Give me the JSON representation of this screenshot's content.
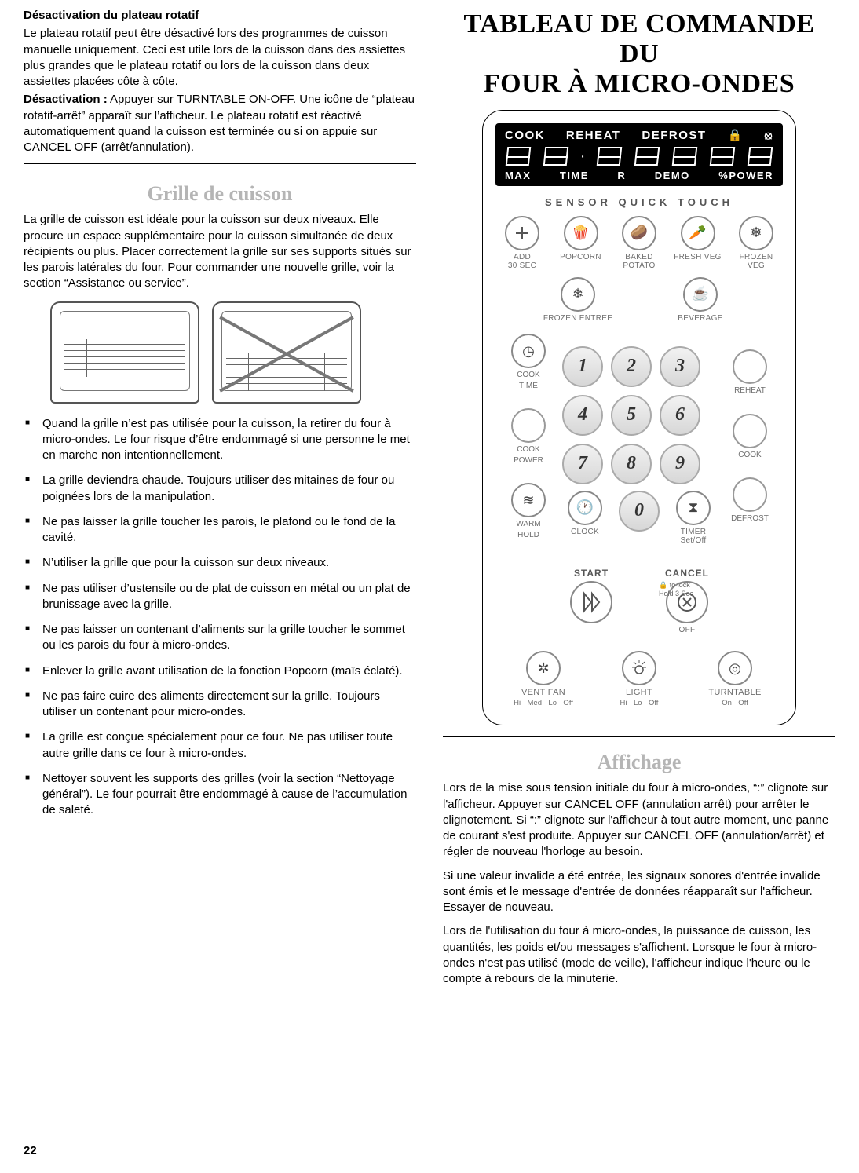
{
  "left": {
    "h1": "Désactivation du plateau rotatif",
    "p1": "Le plateau rotatif peut être désactivé lors des programmes de cuisson manuelle uniquement. Ceci est utile lors de la cuisson dans des assiettes plus grandes que le plateau rotatif ou lors de la cuisson dans deux assiettes placées côte à côte.",
    "h2": "Désactivation :",
    "p2": " Appuyer sur TURNTABLE ON-OFF. Une icône de “plateau rotatif-arrêt” apparaît sur l’afficheur. Le plateau rotatif est réactivé automatiquement quand la cuisson est terminée ou si on appuie sur CANCEL OFF (arrêt/annulation).",
    "sub1": "Grille de cuisson",
    "p3": "La grille de cuisson est idéale pour la cuisson sur deux niveaux. Elle procure un espace supplémentaire pour la cuisson simultanée de deux récipients ou plus. Placer correctement la grille sur ses supports situés sur les parois latérales du four. Pour commander une nouvelle grille, voir la section “Assistance ou service”.",
    "bullets": [
      "Quand la grille n’est pas utilisée pour la cuisson, la retirer du four à micro-ondes. Le four risque d’être endommagé si une personne le met en marche non intentionnellement.",
      "La grille deviendra chaude. Toujours utiliser des mitaines de four ou poignées lors de la manipulation.",
      "Ne pas laisser la grille toucher les parois, le plafond ou le fond de la cavité.",
      "N’utiliser la grille que pour la cuisson sur deux niveaux.",
      "Ne pas utiliser d’ustensile ou de plat de cuisson en métal ou un plat de brunissage avec la grille.",
      "Ne pas laisser un contenant d’aliments sur la grille toucher le sommet ou les parois du four à micro-ondes.",
      "Enlever la grille avant utilisation de la fonction Popcorn (maïs éclaté).",
      "Ne pas faire cuire des aliments directement sur la grille. Toujours utiliser un contenant pour micro-ondes.",
      "La grille est conçue spécialement pour ce four. Ne pas utiliser toute autre grille dans ce four à micro-ondes.",
      "Nettoyer souvent les supports des grilles (voir la section “Nettoyage général”). Le four pourrait être endommagé à cause de l’accumulation de saleté."
    ]
  },
  "right": {
    "title1": "TABLEAU DE COMMANDE DU",
    "title2": "FOUR À MICRO-ONDES",
    "panel": {
      "disp_top": [
        "COOK",
        "REHEAT",
        "DEFROST"
      ],
      "disp_bot": [
        "MAX",
        "TIME",
        "R",
        "DEMO",
        "%POWER"
      ],
      "subtitle": "SENSOR  QUICK  TOUCH",
      "quick": [
        {
          "label": "ADD\n30 SEC",
          "icon": "plus"
        },
        {
          "label": "POPCORN",
          "icon": "popcorn"
        },
        {
          "label": "BAKED\nPOTATO",
          "icon": "potato"
        },
        {
          "label": "FRESH VEG",
          "icon": "carrot"
        },
        {
          "label": "FROZEN\nVEG",
          "icon": "snow"
        }
      ],
      "quick2": [
        {
          "label": "FROZEN ENTREE",
          "icon": "entree"
        },
        {
          "label": "BEVERAGE",
          "icon": "cup"
        }
      ],
      "side_left": [
        {
          "label": "COOK\nTIME",
          "icon": "clockface"
        },
        {
          "label": "COOK\nPOWER",
          "icon": ""
        },
        {
          "label": "WARM\nHOLD",
          "icon": "waves"
        }
      ],
      "side_right": [
        {
          "label": "REHEAT",
          "icon": ""
        },
        {
          "label": "COOK",
          "icon": ""
        },
        {
          "label": "DEFROST",
          "icon": ""
        }
      ],
      "util": [
        {
          "label": "CLOCK",
          "icon": "clock"
        },
        {
          "label": "TIMER\nSet/Off",
          "icon": "hourglass"
        }
      ],
      "keys": [
        "1",
        "2",
        "3",
        "4",
        "5",
        "6",
        "7",
        "8",
        "9",
        "0"
      ],
      "start": "START",
      "cancel": "CANCEL",
      "off": "OFF",
      "lock_note": "to lock\nHold 3 Sec",
      "bottom": [
        {
          "name": "VENT FAN",
          "sub": "Hi · Med · Lo · Off",
          "icon": "fan"
        },
        {
          "name": "LIGHT",
          "sub": "Hi · Lo · Off",
          "icon": "bulb"
        },
        {
          "name": "TURNTABLE",
          "sub": "On · Off",
          "icon": "turntable"
        }
      ]
    },
    "sub2": "Affichage",
    "p1": "Lors de la mise sous tension initiale du four à micro-ondes, “:” clignote sur l'afficheur. Appuyer sur CANCEL OFF (annulation arrêt) pour arrêter le clignotement. Si “:” clignote sur l'afficheur à tout autre moment, une panne de courant s'est produite. Appuyer sur CANCEL OFF (annulation/arrêt) et régler de nouveau l'horloge au besoin.",
    "p2": "Si une valeur invalide a été entrée, les signaux sonores d'entrée invalide sont émis et le message d'entrée de données réapparaît sur l'afficheur. Essayer de nouveau.",
    "p3": "Lors de l'utilisation du four à micro-ondes, la puissance de cuisson, les quantités, les poids et/ou messages s'affichent. Lorsque le four à micro-ondes n'est pas utilisé (mode de veille), l'afficheur indique l'heure ou le compte à rebours de la minuterie."
  },
  "page_number": "22",
  "colors": {
    "grey_heading": "#b5b5b5",
    "panel_text": "#6f6f6f"
  }
}
